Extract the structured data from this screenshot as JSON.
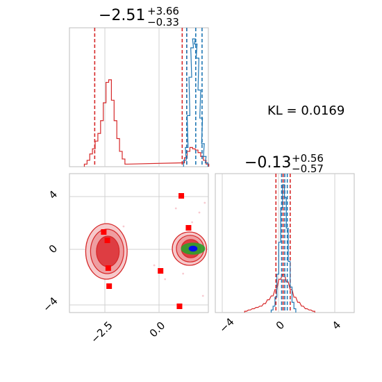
{
  "chart_data": [
    {
      "type": "histogram",
      "panel": "top-left",
      "title_main": "−2.51",
      "title_sup": "+3.66",
      "title_sub": "−0.33",
      "xlim": [
        -4.9,
        2.8
      ],
      "series": [
        {
          "name": "",
          "color": "#d62728",
          "bins": [
            [
              -4.0,
              0.02
            ],
            [
              -3.85,
              0.05
            ],
            [
              -3.7,
              0.1
            ],
            [
              -3.55,
              0.14
            ],
            [
              -3.4,
              0.2
            ],
            [
              -3.25,
              0.26
            ],
            [
              -3.1,
              0.36
            ],
            [
              -2.95,
              0.5
            ],
            [
              -2.8,
              0.66
            ],
            [
              -2.65,
              0.68
            ],
            [
              -2.5,
              0.52
            ],
            [
              -2.35,
              0.36
            ],
            [
              -2.2,
              0.22
            ],
            [
              -2.05,
              0.12
            ],
            [
              -1.9,
              0.06
            ],
            [
              -1.75,
              0.02
            ],
            [
              1.4,
              0.03
            ],
            [
              1.55,
              0.07
            ],
            [
              1.7,
              0.12
            ],
            [
              1.85,
              0.15
            ],
            [
              2.0,
              0.14
            ],
            [
              2.15,
              0.13
            ],
            [
              2.3,
              0.11
            ],
            [
              2.45,
              0.08
            ],
            [
              2.6,
              0.05
            ],
            [
              2.75,
              0.02
            ]
          ],
          "quantiles": [
            -3.5,
            1.35,
            1.6
          ]
        },
        {
          "name": "",
          "color": "#1f77b4",
          "bins": [
            [
              1.5,
              0.05
            ],
            [
              1.6,
              0.15
            ],
            [
              1.7,
              0.4
            ],
            [
              1.8,
              0.7
            ],
            [
              1.9,
              0.93
            ],
            [
              2.0,
              1.0
            ],
            [
              2.1,
              0.96
            ],
            [
              2.2,
              0.85
            ],
            [
              2.3,
              0.6
            ],
            [
              2.4,
              0.38
            ],
            [
              2.5,
              0.18
            ],
            [
              2.6,
              0.08
            ],
            [
              2.7,
              0.03
            ]
          ],
          "quantiles": [
            1.6,
            2.1,
            2.45
          ]
        }
      ]
    },
    {
      "type": "histogram",
      "panel": "bottom-right",
      "title_main": "−0.13",
      "title_sup": "+0.56",
      "title_sub": "−0.57",
      "xlim": [
        -5.5,
        5.5
      ],
      "xticks": [
        "−4",
        "0",
        "4"
      ],
      "series": [
        {
          "name": "",
          "color": "#d62728",
          "bins": [
            [
              -3.1,
              0.01
            ],
            [
              -2.8,
              0.02
            ],
            [
              -2.5,
              0.03
            ],
            [
              -2.2,
              0.04
            ],
            [
              -1.9,
              0.05
            ],
            [
              -1.6,
              0.07
            ],
            [
              -1.3,
              0.1
            ],
            [
              -1.0,
              0.13
            ],
            [
              -0.7,
              0.18
            ],
            [
              -0.4,
              0.26
            ],
            [
              -0.1,
              0.3
            ],
            [
              0.2,
              0.24
            ],
            [
              0.5,
              0.18
            ],
            [
              0.8,
              0.12
            ],
            [
              1.1,
              0.08
            ],
            [
              1.4,
              0.05
            ],
            [
              1.7,
              0.03
            ],
            [
              2.0,
              0.02
            ],
            [
              2.3,
              0.01
            ]
          ],
          "quantiles": [
            -0.7,
            -0.13,
            0.43
          ]
        },
        {
          "name": "",
          "color": "#1f77b4",
          "bins": [
            [
              -1.0,
              0.02
            ],
            [
              -0.85,
              0.05
            ],
            [
              -0.7,
              0.12
            ],
            [
              -0.55,
              0.3
            ],
            [
              -0.4,
              0.55
            ],
            [
              -0.25,
              0.82
            ],
            [
              -0.1,
              1.0
            ],
            [
              0.05,
              0.9
            ],
            [
              0.2,
              0.66
            ],
            [
              0.35,
              0.4
            ],
            [
              0.5,
              0.2
            ],
            [
              0.65,
              0.08
            ],
            [
              0.8,
              0.03
            ]
          ],
          "quantiles": [
            -0.25,
            0.0,
            0.2
          ]
        }
      ]
    },
    {
      "type": "scatter",
      "panel": "bottom-left",
      "xlim": [
        -4.9,
        2.8
      ],
      "ylim": [
        -4.6,
        5.4
      ],
      "xticks": [
        "−2.5",
        "0.0"
      ],
      "yticks": [
        "−4",
        "0",
        "4"
      ],
      "markers": [
        {
          "x": -3.0,
          "y": 1.2
        },
        {
          "x": -2.8,
          "y": 0.6
        },
        {
          "x": -2.75,
          "y": -1.4
        },
        {
          "x": -2.7,
          "y": -2.7
        },
        {
          "x": 0.15,
          "y": -1.6
        },
        {
          "x": 1.3,
          "y": 3.8
        },
        {
          "x": 1.7,
          "y": 1.5
        },
        {
          "x": 1.2,
          "y": -4.15
        }
      ],
      "contours": [
        {
          "color": "#d62728",
          "cx": -2.85,
          "cy": -0.2,
          "rx": 1.15,
          "ry": 2.0
        },
        {
          "color": "#d62728",
          "cx": 1.75,
          "cy": 0.0,
          "rx": 0.95,
          "ry": 1.2
        },
        {
          "color": "#2ca02c",
          "cx": 1.95,
          "cy": 0.0,
          "rx": 0.65,
          "ry": 0.4
        },
        {
          "color": "#0000ff",
          "cx": 1.95,
          "cy": 0.0,
          "rx": 0.22,
          "ry": 0.18
        }
      ]
    }
  ],
  "annotation": "KL = 0.0169"
}
